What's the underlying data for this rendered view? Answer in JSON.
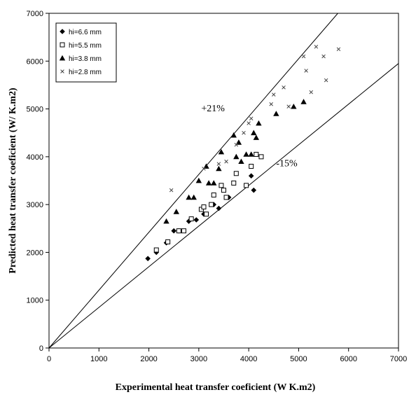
{
  "chart_data": {
    "type": "scatter",
    "xlabel": "Experimental heat transfer coeficient (W K.m2)",
    "ylabel": "Predicted heat transfer coeficient (W/ K.m2)",
    "xlim": [
      0,
      7000
    ],
    "ylim": [
      0,
      7000
    ],
    "x_ticks": [
      "0",
      "1000",
      "2000",
      "3000",
      "4000",
      "5000",
      "6000",
      "7000"
    ],
    "y_ticks": [
      "0",
      "1000",
      "2000",
      "3000",
      "4000",
      "5000",
      "6000",
      "7000"
    ],
    "grid": false,
    "legend_position": "top-left",
    "reference_lines": [
      {
        "label": "+21%",
        "slope": 1.21
      },
      {
        "label": "-15%",
        "slope": 0.85
      }
    ],
    "series": [
      {
        "name": "hi=6.6 mm",
        "marker": "diamond",
        "points": [
          [
            1980,
            1870
          ],
          [
            2150,
            2000
          ],
          [
            2350,
            2200
          ],
          [
            2500,
            2450
          ],
          [
            2600,
            2450
          ],
          [
            2800,
            2650
          ],
          [
            2950,
            2680
          ],
          [
            3100,
            2800
          ],
          [
            3300,
            3000
          ],
          [
            3400,
            2920
          ],
          [
            3600,
            3150
          ],
          [
            4050,
            3600
          ],
          [
            4100,
            3300
          ]
        ]
      },
      {
        "name": "hi=5.5 mm",
        "marker": "square-open",
        "points": [
          [
            2150,
            2050
          ],
          [
            2380,
            2220
          ],
          [
            2600,
            2450
          ],
          [
            2700,
            2450
          ],
          [
            2850,
            2700
          ],
          [
            3050,
            2900
          ],
          [
            3100,
            2950
          ],
          [
            3150,
            2800
          ],
          [
            3250,
            3000
          ],
          [
            3300,
            3200
          ],
          [
            3450,
            3400
          ],
          [
            3500,
            3300
          ],
          [
            3550,
            3150
          ],
          [
            3700,
            3450
          ],
          [
            3750,
            3650
          ],
          [
            3950,
            3400
          ],
          [
            4050,
            3800
          ],
          [
            4150,
            4050
          ],
          [
            4250,
            4000
          ]
        ]
      },
      {
        "name": "hi=3.8 mm",
        "marker": "triangle",
        "points": [
          [
            2350,
            2650
          ],
          [
            2550,
            2850
          ],
          [
            2800,
            3150
          ],
          [
            2900,
            3150
          ],
          [
            3000,
            3500
          ],
          [
            3150,
            3800
          ],
          [
            3200,
            3450
          ],
          [
            3300,
            3450
          ],
          [
            3400,
            3750
          ],
          [
            3450,
            4100
          ],
          [
            3700,
            4450
          ],
          [
            3750,
            4000
          ],
          [
            3800,
            4300
          ],
          [
            3850,
            3900
          ],
          [
            3950,
            4050
          ],
          [
            4050,
            4050
          ],
          [
            4100,
            4500
          ],
          [
            4150,
            4400
          ],
          [
            4200,
            4700
          ],
          [
            4550,
            4900
          ],
          [
            4900,
            5050
          ],
          [
            5100,
            5150
          ]
        ]
      },
      {
        "name": "hi=2.8 mm",
        "marker": "x",
        "points": [
          [
            2450,
            3300
          ],
          [
            3100,
            3750
          ],
          [
            3400,
            3850
          ],
          [
            3550,
            3900
          ],
          [
            3750,
            4250
          ],
          [
            3900,
            4500
          ],
          [
            4000,
            4700
          ],
          [
            4050,
            4800
          ],
          [
            4450,
            5100
          ],
          [
            4500,
            5300
          ],
          [
            4700,
            5450
          ],
          [
            4800,
            5050
          ],
          [
            5100,
            6100
          ],
          [
            5150,
            5800
          ],
          [
            5250,
            5350
          ],
          [
            5350,
            6300
          ],
          [
            5500,
            6100
          ],
          [
            5550,
            5600
          ],
          [
            5800,
            6250
          ]
        ]
      }
    ]
  }
}
